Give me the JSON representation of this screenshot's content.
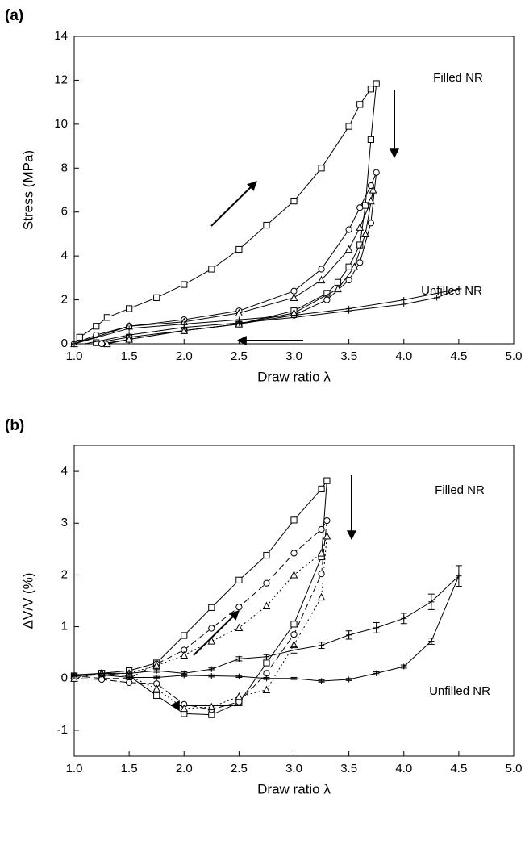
{
  "chart_data": [
    {
      "type": "line",
      "panel_label": "(a)",
      "x_label": "Draw ratio λ",
      "y_label": "Stress (MPa)",
      "xlim": [
        1.0,
        5.0
      ],
      "ylim": [
        0,
        14
      ],
      "xticks": [
        {
          "value": 1.0,
          "label": "1.0"
        },
        {
          "value": 1.5,
          "label": "1.5"
        },
        {
          "value": 2.0,
          "label": "2.0"
        },
        {
          "value": 2.5,
          "label": "2.5"
        },
        {
          "value": 3.0,
          "label": "3.0"
        },
        {
          "value": 3.5,
          "label": "3.5"
        },
        {
          "value": 4.0,
          "label": "4.0"
        },
        {
          "value": 4.5,
          "label": "4.5"
        },
        {
          "value": 5.0,
          "label": "5.0"
        }
      ],
      "yticks": [
        0,
        2,
        4,
        6,
        8,
        10,
        12,
        14
      ],
      "annotations": [
        "Filled NR",
        "Unfilled NR"
      ],
      "series": [
        {
          "marker": "square",
          "color": "#000000",
          "linestyle": "solid",
          "x": [
            1.05,
            1.2,
            1.3,
            1.5,
            1.75,
            2.0,
            2.25,
            2.5,
            2.75,
            3.0,
            3.25,
            3.5,
            3.6,
            3.7,
            3.75,
            3.7,
            3.65,
            3.6,
            3.5,
            3.4,
            3.3,
            3.0,
            2.5,
            2.0,
            1.5,
            1.2
          ],
          "values": [
            0.3,
            0.8,
            1.2,
            1.6,
            2.1,
            2.7,
            3.4,
            4.3,
            5.4,
            6.5,
            8.0,
            9.9,
            10.9,
            11.6,
            11.85,
            9.3,
            6.3,
            4.5,
            3.5,
            2.8,
            2.3,
            1.5,
            0.9,
            0.6,
            0.3,
            0.05
          ]
        },
        {
          "marker": "circle",
          "color": "#000000",
          "linestyle": "solid",
          "x": [
            1.0,
            1.2,
            1.5,
            2.0,
            2.5,
            3.0,
            3.25,
            3.5,
            3.6,
            3.7,
            3.75,
            3.7,
            3.6,
            3.5,
            3.3,
            3.0,
            2.5,
            2.0,
            1.5,
            1.25
          ],
          "values": [
            0,
            0.4,
            0.8,
            1.1,
            1.5,
            2.4,
            3.4,
            5.2,
            6.2,
            7.2,
            7.8,
            5.5,
            3.7,
            2.9,
            2.0,
            1.3,
            0.9,
            0.6,
            0.2,
            0
          ]
        },
        {
          "marker": "triangle",
          "color": "#000000",
          "linestyle": "solid",
          "x": [
            1.0,
            1.5,
            2.0,
            2.5,
            3.0,
            3.25,
            3.5,
            3.6,
            3.7,
            3.72,
            3.65,
            3.55,
            3.4,
            3.0,
            2.5,
            2.0,
            1.5,
            1.3
          ],
          "values": [
            0,
            0.8,
            1.0,
            1.4,
            2.1,
            2.9,
            4.3,
            5.3,
            6.5,
            7.0,
            5.0,
            3.5,
            2.5,
            1.4,
            0.9,
            0.6,
            0.2,
            0
          ]
        },
        {
          "marker": "plus",
          "color": "#000000",
          "linestyle": "solid",
          "x": [
            1.0,
            1.5,
            2.0,
            2.5,
            3.0,
            3.5,
            4.0,
            4.5,
            4.3,
            4.0,
            3.5,
            3.0,
            2.5,
            2.0,
            1.5,
            1.1
          ],
          "values": [
            0,
            0.7,
            0.9,
            1.1,
            1.3,
            1.6,
            2.0,
            2.5,
            2.1,
            1.8,
            1.5,
            1.2,
            0.95,
            0.75,
            0.4,
            0
          ]
        }
      ]
    },
    {
      "type": "line",
      "panel_label": "(b)",
      "x_label": "Draw ratio λ",
      "y_label": "ΔV/V (%)",
      "xlim": [
        1.0,
        5.0
      ],
      "ylim": [
        -1.5,
        4.5
      ],
      "xticks": [
        {
          "value": 1.0,
          "label": "1.0"
        },
        {
          "value": 1.5,
          "label": "1.5"
        },
        {
          "value": 2.0,
          "label": "2.0"
        },
        {
          "value": 2.5,
          "label": "2.5"
        },
        {
          "value": 3.0,
          "label": "3.0"
        },
        {
          "value": 3.5,
          "label": "3.5"
        },
        {
          "value": 4.0,
          "label": "4.0"
        },
        {
          "value": 4.5,
          "label": "4.5"
        },
        {
          "value": 5.0,
          "label": "5.0"
        }
      ],
      "yticks": [
        -1,
        0,
        1,
        2,
        3,
        4
      ],
      "annotations": [
        "Filled NR",
        "Unfilled NR"
      ],
      "series": [
        {
          "marker": "square",
          "color": "#000000",
          "linestyle": "solid",
          "x": [
            1.0,
            1.25,
            1.5,
            1.75,
            2.0,
            2.25,
            2.5,
            2.75,
            3.0,
            3.25,
            3.3,
            3.25,
            3.0,
            2.75,
            2.5,
            2.25,
            2.0,
            1.75,
            1.5,
            1.25,
            1.0
          ],
          "values": [
            0.05,
            0.1,
            0.15,
            0.3,
            0.83,
            1.37,
            1.9,
            2.38,
            3.06,
            3.66,
            3.82,
            2.35,
            1.05,
            0.3,
            -0.47,
            -0.7,
            -0.68,
            -0.33,
            0.05,
            0.1,
            0.05
          ]
        },
        {
          "marker": "circle",
          "color": "#000000",
          "linestyle": "dashed",
          "x": [
            1.0,
            1.25,
            1.5,
            1.75,
            2.0,
            2.25,
            2.5,
            2.75,
            3.0,
            3.25,
            3.3,
            3.25,
            3.0,
            2.75,
            2.5,
            2.25,
            2.0,
            1.75,
            1.5,
            1.25,
            1.0
          ],
          "values": [
            0.05,
            0,
            0,
            0.28,
            0.55,
            0.97,
            1.38,
            1.84,
            2.42,
            2.88,
            3.05,
            2.02,
            0.85,
            0.1,
            -0.45,
            -0.6,
            -0.5,
            -0.1,
            -0.08,
            -0.02,
            0
          ]
        },
        {
          "marker": "triangle",
          "color": "#000000",
          "linestyle": "dotted",
          "x": [
            1.0,
            1.25,
            1.5,
            1.75,
            2.0,
            2.25,
            2.5,
            2.75,
            3.0,
            3.25,
            3.3,
            3.25,
            3.0,
            2.75,
            2.5,
            2.25,
            2.0,
            1.75,
            1.5,
            1.25,
            1.0
          ],
          "values": [
            0,
            0.1,
            0.1,
            0.25,
            0.45,
            0.72,
            0.98,
            1.4,
            2.0,
            2.42,
            2.75,
            1.57,
            0.65,
            -0.22,
            -0.35,
            -0.55,
            -0.58,
            -0.2,
            0.05,
            0.1,
            0.05
          ]
        },
        {
          "marker": "plus",
          "color": "#000000",
          "linestyle": "solid",
          "x": [
            1.0,
            1.25,
            1.5,
            1.75,
            2.0,
            2.25,
            2.5,
            2.75,
            3.0,
            3.25,
            3.5,
            3.75,
            4.0,
            4.25,
            4.5,
            4.25,
            4.0,
            3.75,
            3.5,
            3.25,
            3.0,
            2.75,
            2.5,
            2.25,
            2.0,
            1.75,
            1.5,
            1.25,
            1.0
          ],
          "values": [
            0.07,
            0.1,
            0.1,
            0.15,
            0.1,
            0.18,
            0.38,
            0.42,
            0.55,
            0.64,
            0.84,
            0.98,
            1.16,
            1.48,
            1.98,
            0.72,
            0.23,
            0.1,
            -0.02,
            -0.05,
            0,
            0,
            0.04,
            0.05,
            0.06,
            0.02,
            0.02,
            0.07,
            0.05
          ],
          "errors": [
            0,
            0,
            0,
            0.03,
            0.03,
            0.03,
            0.04,
            0.04,
            0.06,
            0.06,
            0.08,
            0.1,
            0.1,
            0.15,
            0.2,
            0.06,
            0.03,
            0.03,
            0.02,
            0.02,
            0.02,
            0.02,
            0.02,
            0.02,
            0.02,
            0.02,
            0.02,
            0.02,
            0.02
          ]
        }
      ]
    }
  ]
}
